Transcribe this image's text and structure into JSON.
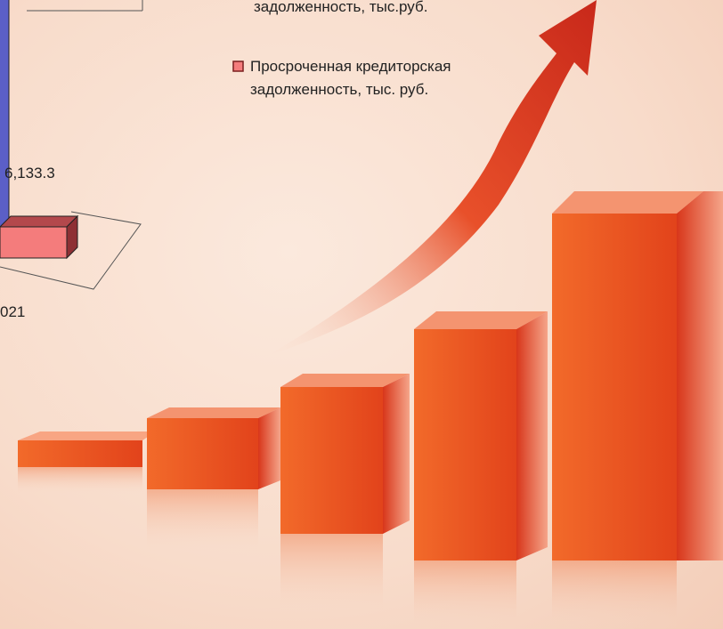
{
  "chart_data": {
    "type": "bar3d",
    "categories": [
      "021"
    ],
    "series": [
      {
        "name": "задолженность, тыс.руб.",
        "color": "#5b5fc7",
        "values": [
          70000
        ]
      },
      {
        "name": "Просроченная кредиторская задолженность, тыс. руб.",
        "color": "#f47c7c",
        "values": [
          6133.3
        ],
        "value_labels": [
          "6,133.3"
        ]
      }
    ]
  }
}
